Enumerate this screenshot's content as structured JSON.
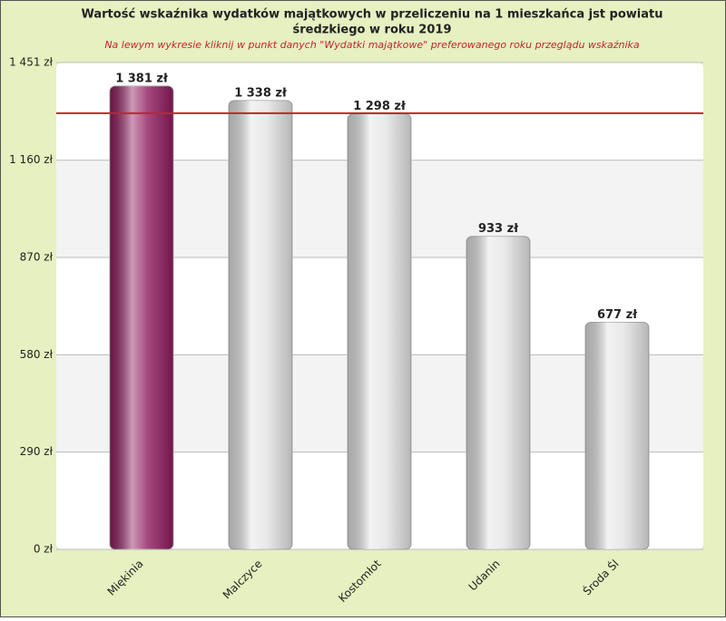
{
  "chart_data": {
    "type": "bar",
    "title": "Wartość wskaźnika wydatków majątkowych w przeliczeniu na 1 mieszkańca jst powiatu",
    "title_line2": "średzkiego w roku 2019",
    "subtitle": "Na lewym wykresie kliknij w punkt  danych \"Wydatki majątkowe\" preferowanego roku przeglądu wskaźnika",
    "categories": [
      "Miękinia",
      "Malczyce",
      "Kostomłot",
      "Udanin",
      "Środa Śl"
    ],
    "values": [
      1381,
      1338,
      1298,
      933,
      677
    ],
    "value_labels": [
      "1 381 zł",
      "1 338 zł",
      "1 298 zł",
      "933 zł",
      "677 zł"
    ],
    "colors": [
      "#8e1a5e",
      "#e4e4e4",
      "#e4e4e4",
      "#e4e4e4",
      "#e4e4e4"
    ],
    "reference_line": 1300,
    "reference_color": "#c0262c",
    "ylim": [
      0,
      1451
    ],
    "yticks": [
      {
        "value": 0,
        "label": "0 zł"
      },
      {
        "value": 290,
        "label": "290 zł"
      },
      {
        "value": 580,
        "label": "580 zł"
      },
      {
        "value": 870,
        "label": "870 zł"
      },
      {
        "value": 1160,
        "label": "1 160 zł"
      },
      {
        "value": 1451,
        "label": "1 451 zł"
      }
    ],
    "grid": true
  }
}
